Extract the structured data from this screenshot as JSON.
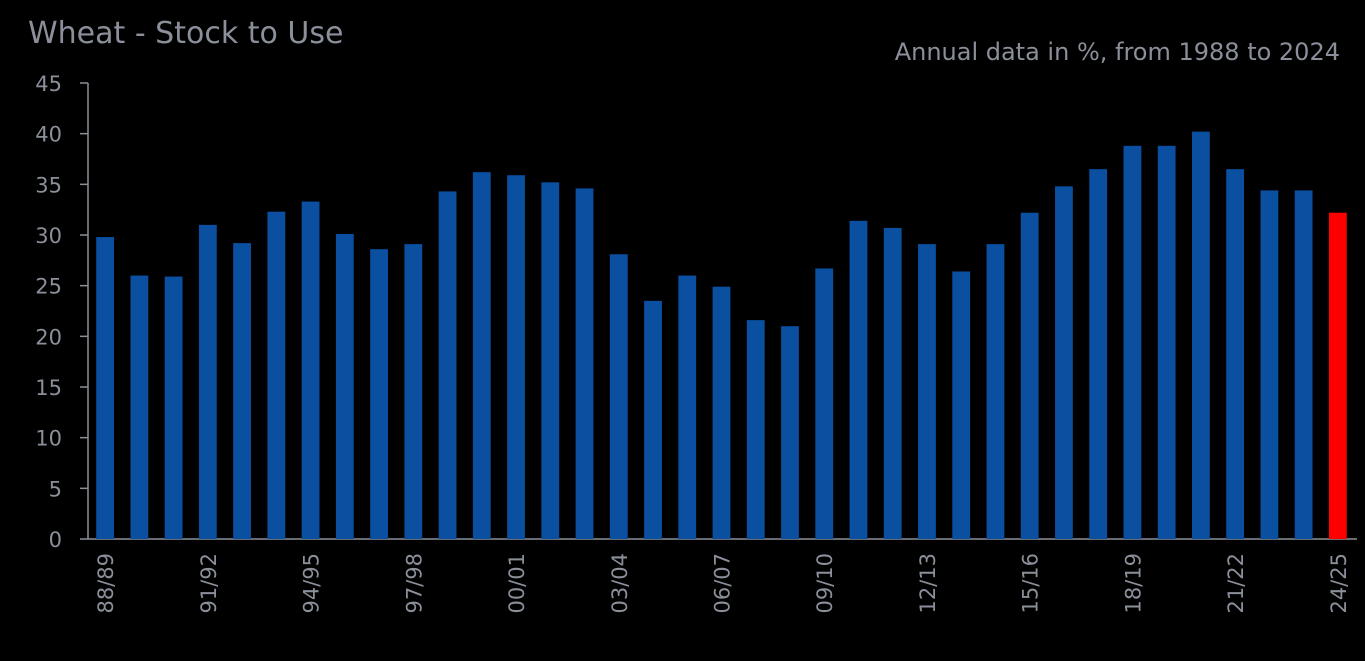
{
  "chart_data": {
    "type": "bar",
    "title": "Wheat - Stock to Use",
    "subtitle": "Annual data in %, from 1988 to 2024",
    "xlabel": "",
    "ylabel": "",
    "ylim": [
      0,
      45
    ],
    "yticks": [
      0,
      5,
      10,
      15,
      20,
      25,
      30,
      35,
      40,
      45
    ],
    "grid": false,
    "categories": [
      "88/89",
      "89/90",
      "90/91",
      "91/92",
      "92/93",
      "93/94",
      "94/95",
      "95/96",
      "96/97",
      "97/98",
      "98/99",
      "99/00",
      "00/01",
      "01/02",
      "02/03",
      "03/04",
      "04/05",
      "05/06",
      "06/07",
      "07/08",
      "08/09",
      "09/10",
      "10/11",
      "11/12",
      "12/13",
      "13/14",
      "14/15",
      "15/16",
      "16/17",
      "17/18",
      "18/19",
      "19/20",
      "20/21",
      "21/22",
      "22/23",
      "23/24",
      "24/25"
    ],
    "xtick_labels": [
      "88/89",
      "91/92",
      "94/95",
      "97/98",
      "00/01",
      "03/04",
      "06/07",
      "09/10",
      "12/13",
      "15/16",
      "18/19",
      "21/22",
      "24/25"
    ],
    "values": [
      29.8,
      26.0,
      25.9,
      31.0,
      29.2,
      32.3,
      33.3,
      30.1,
      28.6,
      29.1,
      34.3,
      36.2,
      35.9,
      35.2,
      34.6,
      28.1,
      23.5,
      26.0,
      24.9,
      21.6,
      21.0,
      26.7,
      31.4,
      30.7,
      29.1,
      26.4,
      29.1,
      32.2,
      34.8,
      36.5,
      38.8,
      38.8,
      40.2,
      36.5,
      34.4,
      34.4,
      32.2
    ],
    "colors": {
      "bar": "#0a4fa0",
      "highlight": "#ff0000",
      "axis": "#8a8f99",
      "background": "#000000"
    },
    "highlight_index": 36
  }
}
